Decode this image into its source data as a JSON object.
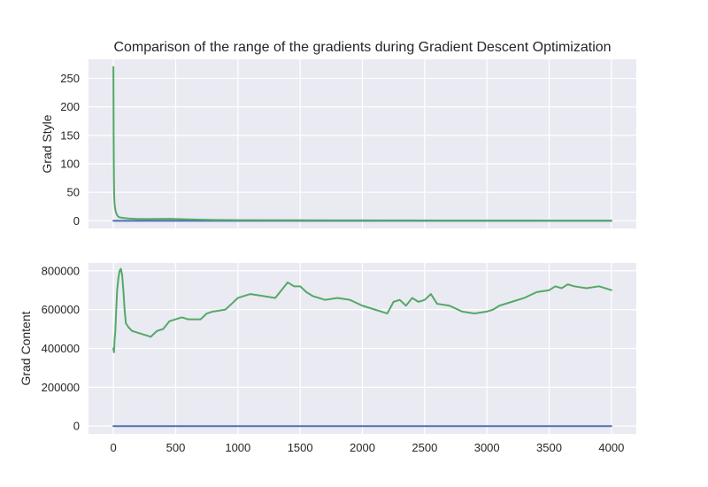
{
  "chart_data": [
    {
      "type": "line",
      "title": "Comparison of the range of the gradients during Gradient Descent Optimization",
      "xlabel": "",
      "ylabel": "Grad Style",
      "xlim": [
        -200,
        4200
      ],
      "ylim": [
        -13.5,
        283.5
      ],
      "yticks": [
        0,
        50,
        100,
        150,
        200,
        250
      ],
      "xticks": [
        0,
        500,
        1000,
        1500,
        2000,
        2500,
        3000,
        3500,
        4000
      ],
      "show_x_tick_labels": false,
      "grid": true,
      "series": [
        {
          "color": "#4c72b0",
          "x": [
            0,
            4000
          ],
          "y": [
            0,
            0
          ]
        },
        {
          "color": "#55a868",
          "x": [
            0,
            2,
            4,
            6,
            8,
            10,
            15,
            20,
            30,
            40,
            50,
            80,
            120,
            200,
            300,
            450,
            600,
            800,
            1000,
            1500,
            2000,
            3000,
            4000
          ],
          "y": [
            270,
            150,
            80,
            45,
            35,
            28,
            20,
            15,
            10,
            7,
            6,
            5,
            4,
            3,
            3,
            3.5,
            2.5,
            1.5,
            1,
            0.8,
            0.6,
            0.4,
            0.3
          ]
        }
      ]
    },
    {
      "type": "line",
      "title": "",
      "xlabel": "",
      "ylabel": "Grad Content",
      "xlim": [
        -200,
        4200
      ],
      "ylim": [
        -40000,
        840000
      ],
      "yticks": [
        0,
        200000,
        400000,
        600000,
        800000
      ],
      "xticks": [
        0,
        500,
        1000,
        1500,
        2000,
        2500,
        3000,
        3500,
        4000
      ],
      "show_x_tick_labels": true,
      "grid": true,
      "series": [
        {
          "color": "#4c72b0",
          "x": [
            0,
            4000
          ],
          "y": [
            0,
            0
          ]
        },
        {
          "color": "#55a868",
          "x": [
            0,
            5,
            10,
            15,
            20,
            30,
            40,
            50,
            60,
            70,
            80,
            90,
            100,
            120,
            150,
            200,
            250,
            300,
            350,
            400,
            450,
            500,
            550,
            600,
            700,
            750,
            800,
            900,
            950,
            1000,
            1100,
            1200,
            1300,
            1350,
            1400,
            1450,
            1500,
            1550,
            1600,
            1700,
            1800,
            1900,
            2000,
            2100,
            2200,
            2250,
            2300,
            2350,
            2400,
            2450,
            2500,
            2550,
            2600,
            2700,
            2800,
            2900,
            3000,
            3050,
            3100,
            3200,
            3300,
            3400,
            3500,
            3550,
            3600,
            3650,
            3700,
            3800,
            3900,
            4000
          ],
          "y": [
            400000,
            380000,
            450000,
            480000,
            560000,
            700000,
            760000,
            800000,
            810000,
            780000,
            700000,
            600000,
            530000,
            510000,
            490000,
            480000,
            470000,
            460000,
            490000,
            500000,
            540000,
            550000,
            560000,
            550000,
            550000,
            580000,
            590000,
            600000,
            630000,
            660000,
            680000,
            670000,
            660000,
            700000,
            740000,
            720000,
            720000,
            690000,
            670000,
            650000,
            660000,
            650000,
            620000,
            600000,
            580000,
            640000,
            650000,
            620000,
            660000,
            640000,
            650000,
            680000,
            630000,
            620000,
            590000,
            580000,
            590000,
            600000,
            620000,
            640000,
            660000,
            690000,
            700000,
            720000,
            710000,
            730000,
            720000,
            710000,
            720000,
            700000
          ]
        }
      ]
    }
  ]
}
